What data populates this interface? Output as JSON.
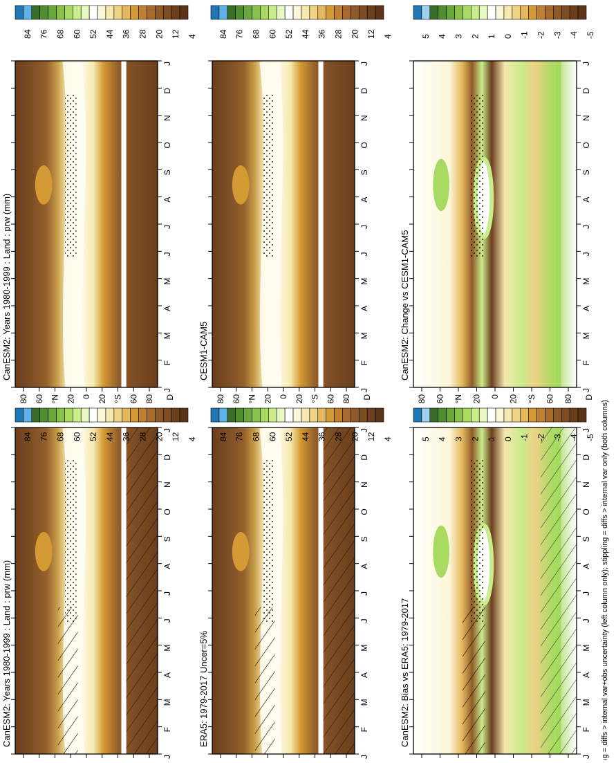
{
  "footnote": "hatching = diffs > internal var+obs uncertainty (left column only); stippling = diffs > internal var only (both columns)",
  "colorbars": {
    "abs": {
      "labels": [
        "84",
        "76",
        "68",
        "60",
        "52",
        "44",
        "36",
        "28",
        "20",
        "12",
        "4"
      ]
    },
    "diff": {
      "labels": [
        "5",
        "4",
        "3",
        "2",
        "1",
        "0",
        "-1",
        "-2",
        "-3",
        "-4",
        "-5"
      ]
    }
  },
  "colors": {
    "abs_scale": [
      "#1f78b4",
      "#5fb2e8",
      "#3a6d28",
      "#4f8f2f",
      "#6aa83c",
      "#88c24a",
      "#a8da62",
      "#c9ec8d",
      "#e8f8c4",
      "#ffffff",
      "#fcf6d8",
      "#f6e8b0",
      "#eed286",
      "#e3b85e",
      "#d49a34",
      "#c08032",
      "#a56a2c",
      "#8f5a28",
      "#7c4c22",
      "#6b3f1c",
      "#5c3417"
    ],
    "diff_scale": [
      "#1f78b4",
      "#9fd2f2",
      "#3a6d28",
      "#4f8f2f",
      "#6aa83c",
      "#88c24a",
      "#a8da62",
      "#c9ec8d",
      "#e8f8c4",
      "#ffffff",
      "#fcf6d8",
      "#f6e8b0",
      "#eed286",
      "#e3b85e",
      "#d49a34",
      "#c08032",
      "#a56a2c",
      "#8f5a28",
      "#7c4c22",
      "#6b3f1c",
      "#5c3417"
    ],
    "abs_field": [
      "#6b3f1c",
      "#7f4f24",
      "#94602c",
      "#a87a36",
      "#c9a04a",
      "#e3c27a",
      "#f3e3b5",
      "#fffdf0"
    ],
    "diff_pos": "#a8da62",
    "diff_neg": "#8f5a28"
  },
  "chart_data": [
    {
      "type": "heatmap",
      "title": "CanESM2: Years 1980-1999 : Land : prw (mm)",
      "x_tick_labels": [
        "J",
        "F",
        "M",
        "A",
        "M",
        "J",
        "J",
        "A",
        "S",
        "O",
        "N",
        "D",
        "J"
      ],
      "y_tick_labels": [
        "80",
        "60",
        "°N",
        "20",
        "0",
        "20",
        "°S",
        "60",
        "80"
      ],
      "y_extra_label": "D",
      "variable": "prw",
      "units": "mm",
      "years": "1980-1999",
      "colorbar": "abs",
      "field": "abs",
      "hatching": true,
      "stippling": true
    },
    {
      "type": "heatmap",
      "title": "CanESM2: Years 1980-1999 : Land : prw (mm)",
      "x_tick_labels": [
        "J",
        "F",
        "M",
        "A",
        "M",
        "J",
        "J",
        "A",
        "S",
        "O",
        "N",
        "D",
        "J"
      ],
      "y_tick_labels": [
        "80",
        "60",
        "°N",
        "20",
        "0",
        "20",
        "°S",
        "60",
        "80"
      ],
      "y_extra_label": "D",
      "variable": "prw",
      "units": "mm",
      "years": "1980-1999",
      "colorbar": "abs",
      "field": "abs",
      "hatching": false,
      "stippling": true
    },
    {
      "type": "heatmap",
      "title": "ERA5: 1979-2017 Uncer=5%",
      "x_tick_labels": [
        "J",
        "F",
        "M",
        "A",
        "M",
        "J",
        "J",
        "A",
        "S",
        "O",
        "N",
        "D",
        "J"
      ],
      "y_tick_labels": [
        "80",
        "60",
        "°N",
        "20",
        "0",
        "20",
        "°S",
        "60",
        "80"
      ],
      "y_extra_label": "D",
      "colorbar": "abs",
      "field": "abs",
      "hatching": true,
      "stippling": true
    },
    {
      "type": "heatmap",
      "title": "CESM1-CAM5",
      "x_tick_labels": [
        "J",
        "F",
        "M",
        "A",
        "M",
        "J",
        "J",
        "A",
        "S",
        "O",
        "N",
        "D",
        "J"
      ],
      "y_tick_labels": [
        "80",
        "60",
        "°N",
        "20",
        "0",
        "20",
        "°S",
        "60",
        "80"
      ],
      "y_extra_label": "D",
      "colorbar": "abs",
      "field": "abs",
      "hatching": false,
      "stippling": true
    },
    {
      "type": "heatmap",
      "title": "CanESM2: Bias vs ERA5: 1979-2017",
      "x_tick_labels": [
        "J",
        "F",
        "M",
        "A",
        "M",
        "J",
        "J",
        "A",
        "S",
        "O",
        "N",
        "D",
        "J"
      ],
      "y_tick_labels": [
        "80",
        "60",
        "°N",
        "20",
        "0",
        "20",
        "°S",
        "60",
        "80"
      ],
      "y_extra_label": "D",
      "colorbar": "diff",
      "field": "diff",
      "hatching": true,
      "stippling": true
    },
    {
      "type": "heatmap",
      "title": "CanESM2: Change vs CESM1-CAM5",
      "x_tick_labels": [
        "J",
        "F",
        "M",
        "A",
        "M",
        "J",
        "J",
        "A",
        "S",
        "O",
        "N",
        "D",
        "J"
      ],
      "y_tick_labels": [
        "80",
        "60",
        "°N",
        "20",
        "0",
        "20",
        "°S",
        "60",
        "80"
      ],
      "y_extra_label": "D",
      "colorbar": "diff",
      "field": "diff",
      "hatching": false,
      "stippling": true
    }
  ]
}
